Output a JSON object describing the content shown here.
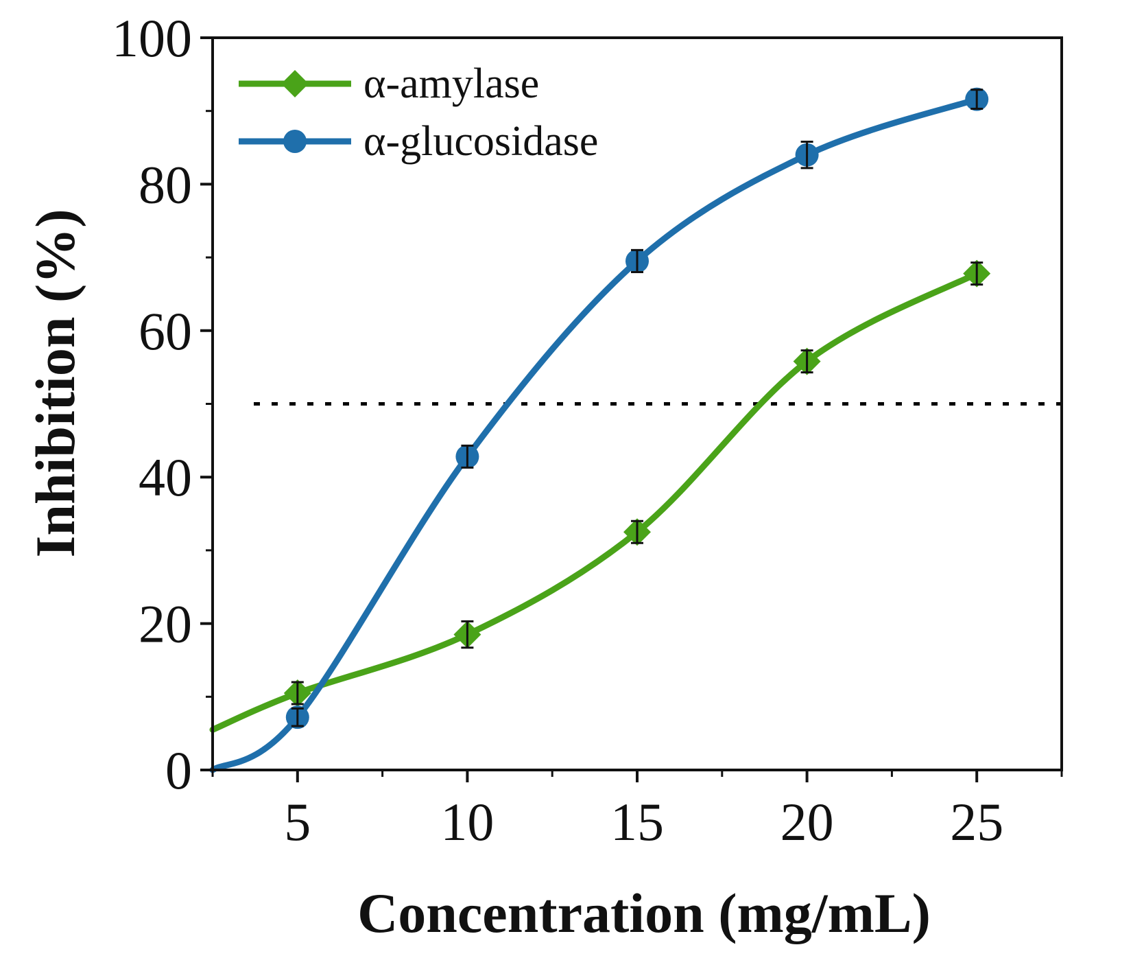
{
  "chart_data": {
    "type": "line",
    "title": "",
    "xlabel": "Concentration (mg/mL)",
    "ylabel": "Inhibition (%)",
    "xlim": [
      2.5,
      27.5
    ],
    "ylim": [
      0,
      100
    ],
    "xticks": [
      5,
      10,
      15,
      20,
      25
    ],
    "xtick_labels": [
      "5",
      "10",
      "15",
      "20",
      "25"
    ],
    "yticks": [
      0,
      20,
      40,
      60,
      80,
      100
    ],
    "ytick_labels": [
      "0",
      "20",
      "40",
      "60",
      "80",
      "100"
    ],
    "x": [
      5,
      10,
      15,
      20,
      25
    ],
    "reference_line": {
      "y": 50,
      "style": "dotted",
      "color": "#000000"
    },
    "legend_position": "top-left",
    "series": [
      {
        "name": "α-amylase",
        "marker": "diamond",
        "color": "#4aa319",
        "values": [
          10.5,
          18.5,
          32.5,
          55.8,
          67.8
        ],
        "errors": [
          1.5,
          1.8,
          1.5,
          1.5,
          1.5
        ],
        "curve_extension": {
          "x": 2.5,
          "y": 5.5
        }
      },
      {
        "name": "α-glucosidase",
        "marker": "circle",
        "color": "#1f6fab",
        "values": [
          7.2,
          42.8,
          69.5,
          84.0,
          91.6
        ],
        "errors": [
          1.2,
          1.5,
          1.5,
          1.8,
          1.3
        ],
        "curve_extension": {
          "x": 2.5,
          "y": 0.0
        }
      }
    ]
  }
}
